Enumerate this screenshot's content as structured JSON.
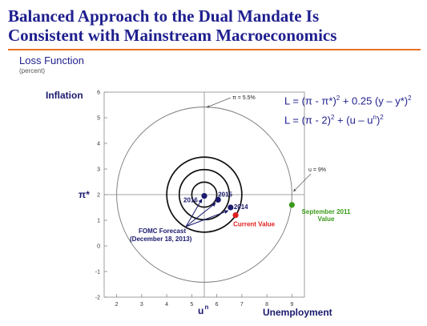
{
  "slide": {
    "title_line1": "Balanced Approach to the Dual Mandate Is",
    "title_line2": "Consistent with Mainstream Macroeconomics",
    "subtitle": "Loss Function",
    "unit": "(percent)"
  },
  "formulas": {
    "line1": {
      "lhs": "L = (π  - π*)",
      "exp1": "2",
      "mid": " + 0.25 (y – y*)",
      "exp2": "2"
    },
    "line2": {
      "lhs": "L = (π  - 2)",
      "exp1": "2",
      "mid": " + (u – u",
      "sup_n": "n",
      "tail": ")",
      "exp2": "2"
    }
  },
  "colors": {
    "title": "#1f1f8f",
    "rule": "#e8702a",
    "navy": "#1a1a6e",
    "red": "#e02020",
    "green": "#3a9a1a",
    "axis": "#555555"
  },
  "chart_data": {
    "type": "scatter",
    "xlim": [
      1.5,
      9.5
    ],
    "ylim": [
      -2,
      6
    ],
    "x_ticks": [
      2,
      3,
      4,
      5,
      6,
      7,
      8,
      9
    ],
    "y_ticks": [
      -2,
      -1,
      0,
      1,
      2,
      3,
      4,
      5,
      6
    ],
    "ylabel": "Inflation",
    "xlabel": "Unemployment",
    "target_labels": {
      "pi_star": "π*",
      "u_n": "u",
      "u_n_sup": "n"
    },
    "target": {
      "u": 5.5,
      "pi": 2
    },
    "contour_radii": [
      0.5,
      1.0,
      1.5,
      3.5
    ],
    "annotations": {
      "pi_55": "π = 5.5%",
      "u_9": "u = 9%"
    },
    "fomc_label_line1": "FOMC Forecast",
    "fomc_label_line2": "(December 18, 2013)",
    "fomc_forecast": [
      {
        "label": "2014",
        "u": 6.55,
        "pi": 1.5
      },
      {
        "label": "2015",
        "u": 6.05,
        "pi": 1.8
      },
      {
        "label": "2016",
        "u": 5.5,
        "pi": 1.95
      }
    ],
    "current": {
      "label": "Current Value",
      "u": 6.75,
      "pi": 1.2
    },
    "september2011": {
      "label_line1": "September 2011",
      "label_line2": "Value",
      "u": 9.0,
      "pi": 1.6
    }
  }
}
